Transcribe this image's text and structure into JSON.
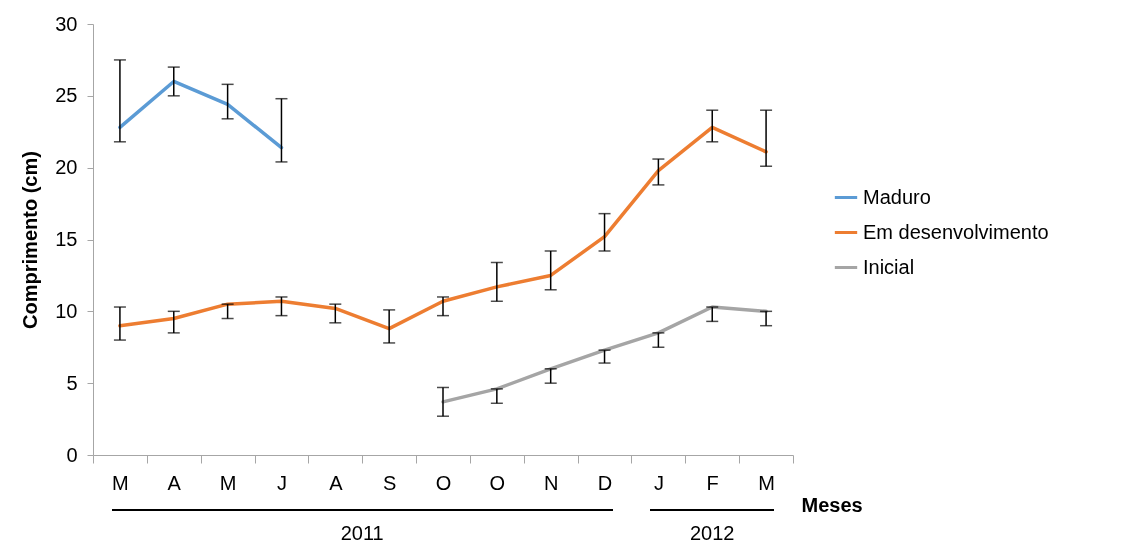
{
  "chart_data": {
    "type": "line",
    "xlabel": "Meses",
    "ylabel": "Comprimento (cm)",
    "categories": [
      "M",
      "A",
      "M",
      "J",
      "A",
      "S",
      "O",
      "O",
      "N",
      "D",
      "J",
      "F",
      "M"
    ],
    "ylim": [
      0,
      30
    ],
    "yticks": [
      0,
      5,
      10,
      15,
      20,
      25,
      30
    ],
    "grid": false,
    "legend": "right",
    "marker": "none",
    "series": [
      {
        "name": "Maduro",
        "color": "#5b9bd5",
        "values": [
          22.8,
          26.0,
          24.4,
          21.4,
          null,
          null,
          null,
          null,
          null,
          null,
          null,
          null,
          null
        ],
        "errors": [
          [
            21.8,
            27.5
          ],
          [
            25.0,
            27.0
          ],
          [
            23.4,
            25.8
          ],
          [
            20.4,
            24.8
          ],
          null,
          null,
          null,
          null,
          null,
          null,
          null,
          null,
          null
        ]
      },
      {
        "name": "Em desenvolvimento",
        "color": "#ed7d31",
        "values": [
          9.0,
          9.5,
          10.5,
          10.7,
          10.2,
          8.8,
          10.7,
          11.7,
          12.5,
          15.2,
          19.8,
          22.8,
          21.1
        ],
        "errors": [
          [
            8.0,
            10.3
          ],
          [
            8.5,
            10.0
          ],
          [
            9.5,
            10.5
          ],
          [
            9.7,
            11.0
          ],
          [
            9.2,
            10.5
          ],
          [
            7.8,
            10.1
          ],
          [
            9.7,
            11.0
          ],
          [
            10.7,
            13.4
          ],
          [
            11.5,
            14.2
          ],
          [
            14.2,
            16.8
          ],
          [
            18.8,
            20.6
          ],
          [
            21.8,
            24.0
          ],
          [
            20.1,
            24.0
          ]
        ]
      },
      {
        "name": "Inicial",
        "color": "#a5a5a5",
        "values": [
          null,
          null,
          null,
          null,
          null,
          null,
          3.7,
          4.6,
          6.0,
          7.3,
          8.5,
          10.3,
          10.0
        ],
        "errors": [
          null,
          null,
          null,
          null,
          null,
          null,
          [
            2.7,
            4.7
          ],
          [
            3.6,
            4.6
          ],
          [
            5.0,
            6.0
          ],
          [
            6.4,
            7.3
          ],
          [
            7.5,
            8.5
          ],
          [
            9.3,
            10.3
          ],
          [
            9.0,
            10.0
          ]
        ]
      }
    ],
    "annotations": [
      "2011",
      "2012"
    ]
  }
}
